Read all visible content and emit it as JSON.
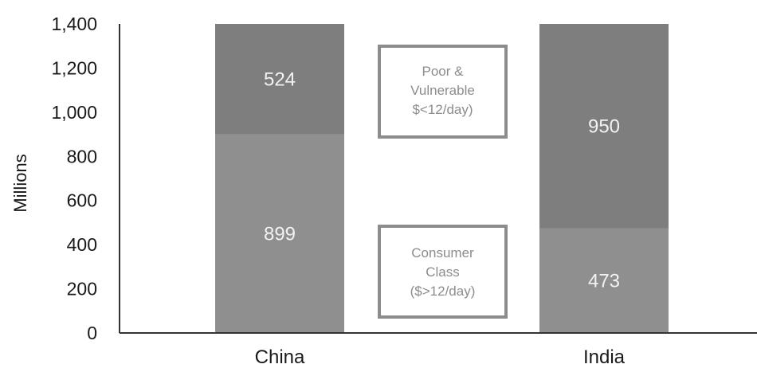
{
  "chart_data": {
    "type": "bar",
    "stacked": true,
    "categories": [
      "China",
      "India"
    ],
    "series": [
      {
        "name": "Consumer Class ($>12/day)",
        "values": [
          899,
          473
        ],
        "color": "#8f8f8f"
      },
      {
        "name": "Poor & Vulnerable $<12/day)",
        "values": [
          524,
          950
        ],
        "color": "#7e7e7e"
      }
    ],
    "ylabel": "Millions",
    "ylim": [
      0,
      1400
    ],
    "yticks": [
      "0",
      "200",
      "400",
      "600",
      "800",
      "1,000",
      "1,200",
      "1,400"
    ],
    "annotations": [
      {
        "lines": [
          "Poor &",
          "Vulnerable",
          "$<12/day)"
        ]
      },
      {
        "lines": [
          "Consumer",
          "Class",
          "($>12/day)"
        ]
      }
    ],
    "box_color": "#8c8c8c"
  }
}
